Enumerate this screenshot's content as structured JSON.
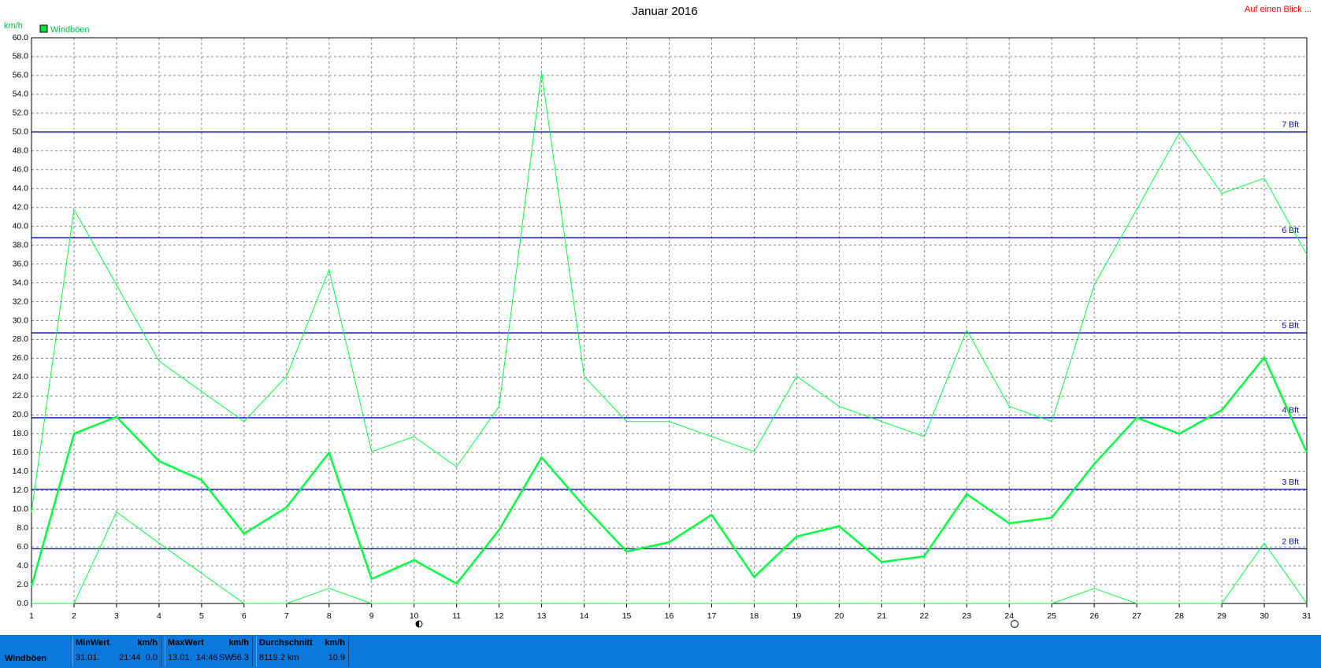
{
  "chart_data": {
    "type": "line",
    "title": "Januar 2016",
    "y_label": "km/h",
    "corner_link": "Auf einen Blick ...",
    "x": [
      1,
      2,
      3,
      4,
      5,
      6,
      7,
      8,
      9,
      10,
      11,
      12,
      13,
      14,
      15,
      16,
      17,
      18,
      19,
      20,
      21,
      22,
      23,
      24,
      25,
      26,
      27,
      28,
      29,
      30,
      31
    ],
    "xlim": [
      1,
      31
    ],
    "xticks": [
      1,
      2,
      3,
      4,
      5,
      6,
      7,
      8,
      9,
      10,
      11,
      12,
      13,
      14,
      15,
      16,
      17,
      18,
      19,
      20,
      21,
      22,
      23,
      24,
      25,
      26,
      27,
      28,
      29,
      30,
      31
    ],
    "ylim": [
      0,
      60
    ],
    "yticks": [
      {
        "value": 0,
        "label": "0.0"
      },
      {
        "value": 2,
        "label": "2.0"
      },
      {
        "value": 4,
        "label": "4.0"
      },
      {
        "value": 6,
        "label": "6.0"
      },
      {
        "value": 8,
        "label": "8.0"
      },
      {
        "value": 10,
        "label": "10.0"
      },
      {
        "value": 12,
        "label": "12.0"
      },
      {
        "value": 14,
        "label": "14.0"
      },
      {
        "value": 16,
        "label": "16.0"
      },
      {
        "value": 18,
        "label": "18.0"
      },
      {
        "value": 20,
        "label": "20.0"
      },
      {
        "value": 22,
        "label": "22.0"
      },
      {
        "value": 24,
        "label": "24.0"
      },
      {
        "value": 26,
        "label": "26.0"
      },
      {
        "value": 28,
        "label": "28.0"
      },
      {
        "value": 30,
        "label": "30.0"
      },
      {
        "value": 32,
        "label": "32.0"
      },
      {
        "value": 34,
        "label": "34.0"
      },
      {
        "value": 36,
        "label": "36.0"
      },
      {
        "value": 38,
        "label": "38.0"
      },
      {
        "value": 40,
        "label": "40.0"
      },
      {
        "value": 42,
        "label": "42.0"
      },
      {
        "value": 44,
        "label": "44.0"
      },
      {
        "value": 46,
        "label": "46.0"
      },
      {
        "value": 48,
        "label": "48.0"
      },
      {
        "value": 50,
        "label": "50.0"
      },
      {
        "value": 52,
        "label": "52.0"
      },
      {
        "value": 54,
        "label": "54.0"
      },
      {
        "value": 56,
        "label": "56.0"
      },
      {
        "value": 58,
        "label": "58.0"
      },
      {
        "value": 60,
        "label": "60.0"
      }
    ],
    "grid": true,
    "legend": {
      "name": "Windböen",
      "color": "#00e040",
      "position": "top-left"
    },
    "series": [
      {
        "color": "#00ff40",
        "width": 1,
        "values": [
          9.7,
          41.8,
          33.8,
          25.7,
          22.5,
          19.3,
          24.1,
          35.4,
          16.1,
          17.7,
          14.5,
          20.9,
          56.3,
          24.1,
          19.3,
          19.3,
          17.7,
          16.1,
          24.1,
          20.9,
          19.3,
          17.7,
          29.0,
          20.9,
          19.3,
          33.8,
          41.8,
          49.9,
          43.5,
          45.1,
          37.0
        ]
      },
      {
        "color": "#00ff40",
        "width": 2.5,
        "values": [
          1.8,
          18.0,
          19.8,
          15.1,
          13.1,
          7.4,
          10.2,
          16.0,
          2.6,
          4.6,
          2.1,
          7.8,
          15.5,
          10.3,
          5.5,
          6.5,
          9.4,
          2.8,
          7.1,
          8.2,
          4.4,
          5.0,
          11.6,
          8.5,
          9.1,
          14.8,
          19.7,
          18.0,
          20.5,
          26.1,
          16.0
        ]
      },
      {
        "color": "#00ff40",
        "width": 1,
        "values": [
          0,
          0,
          9.7,
          6.4,
          3.2,
          0,
          0,
          1.6,
          0,
          0,
          0,
          0,
          0,
          0,
          0,
          0,
          0,
          0,
          0,
          0,
          0,
          0,
          0,
          0,
          0,
          1.6,
          0,
          0,
          0,
          6.4,
          0
        ]
      }
    ],
    "reference_lines": [
      {
        "value": 5.8,
        "label": "2 Bft"
      },
      {
        "value": 12.1,
        "label": "3 Bft"
      },
      {
        "value": 19.7,
        "label": "4 Bft"
      },
      {
        "value": 28.7,
        "label": "5 Bft"
      },
      {
        "value": 38.8,
        "label": "6 Bft"
      },
      {
        "value": 50.0,
        "label": "7 Bft"
      }
    ],
    "reference_color": "#0000c8"
  },
  "stats": {
    "name": "Windböen",
    "min": {
      "title": "MinWert",
      "unit": "km/h",
      "date": "31.01.",
      "time": "21:44",
      "value": "0.0"
    },
    "max": {
      "title": "MaxWert",
      "unit": "km/h",
      "date": "13.01.",
      "time": "14:46",
      "dir": "SW",
      "value": "56.3"
    },
    "avg": {
      "title": "Durchschnitt",
      "unit": "km/h",
      "total": "8119.2 km",
      "value": "10.9"
    }
  }
}
